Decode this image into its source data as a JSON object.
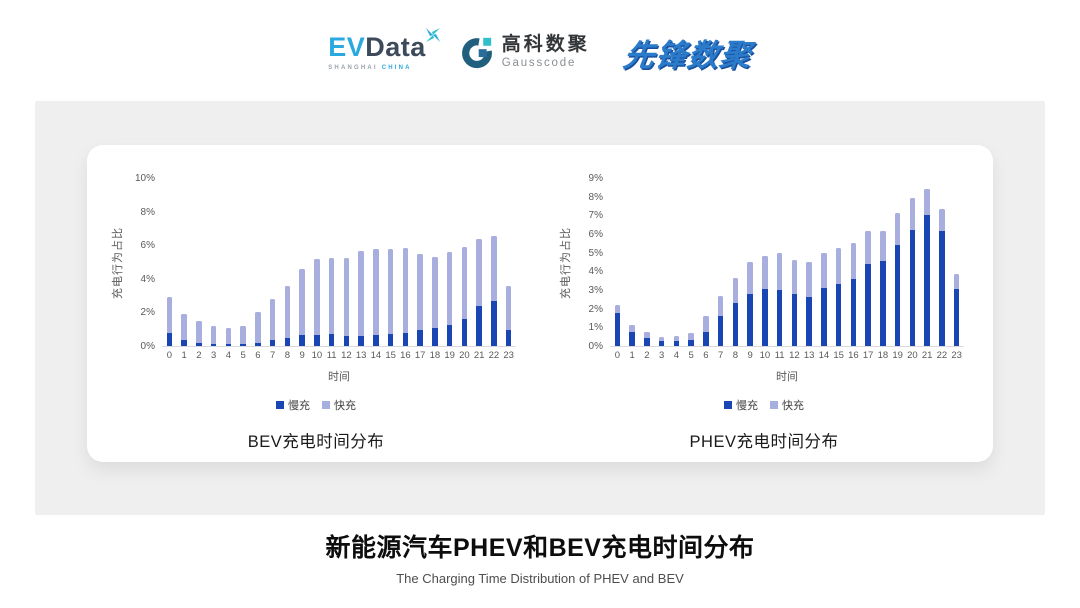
{
  "header": {
    "evdata": {
      "ev": "EV",
      "data": "Data",
      "sub_left": "SHANGHAI",
      "sub_right": "CHINA"
    },
    "gausscode": {
      "cn": "高科数聚",
      "en": "Gausscode"
    },
    "xianfeng": "先锋数聚"
  },
  "colors": {
    "slow_blue": "#1a46b4",
    "fast_periwinkle": "#a8afde",
    "panel_bg": "#efefef",
    "card_bg": "#ffffff",
    "axis_text": "#595959",
    "evdata_blue": "#2aa9e0",
    "evdata_dark": "#3d4a5b",
    "gausscode_dark": "#20607e",
    "gausscode_teal": "#2ec1c9",
    "xianfeng_blue": "#2b7bcb"
  },
  "chart_data": [
    {
      "type": "bar",
      "stacked": true,
      "title": "BEV充电时间分布",
      "xlabel": "时间",
      "ylabel": "充电行为占比",
      "ylim": [
        0,
        10
      ],
      "ytick_step": 2,
      "ytick_suffix": "%",
      "grid": false,
      "legend_position": "bottom",
      "categories": [
        "0",
        "1",
        "2",
        "3",
        "4",
        "5",
        "6",
        "7",
        "8",
        "9",
        "10",
        "11",
        "12",
        "13",
        "14",
        "15",
        "16",
        "17",
        "18",
        "19",
        "20",
        "21",
        "22",
        "23"
      ],
      "series": [
        {
          "name": "慢充",
          "color": "#1a46b4",
          "values": [
            0.75,
            0.35,
            0.2,
            0.1,
            0.1,
            0.1,
            0.15,
            0.35,
            0.45,
            0.65,
            0.65,
            0.7,
            0.6,
            0.6,
            0.65,
            0.7,
            0.8,
            0.95,
            1.1,
            1.25,
            1.6,
            2.4,
            2.7,
            0.95
          ]
        },
        {
          "name": "快充",
          "color": "#a8afde",
          "values": [
            2.15,
            1.55,
            1.3,
            1.1,
            1.0,
            1.1,
            1.85,
            2.45,
            3.15,
            3.95,
            4.55,
            4.55,
            4.65,
            5.05,
            5.15,
            5.1,
            5.05,
            4.55,
            4.2,
            4.35,
            4.3,
            3.95,
            3.85,
            2.6
          ]
        }
      ]
    },
    {
      "type": "bar",
      "stacked": true,
      "title": "PHEV充电时间分布",
      "xlabel": "时间",
      "ylabel": "充电行为占比",
      "ylim": [
        0,
        9
      ],
      "ytick_step": 1,
      "ytick_suffix": "%",
      "grid": false,
      "legend_position": "bottom",
      "categories": [
        "0",
        "1",
        "2",
        "3",
        "4",
        "5",
        "6",
        "7",
        "8",
        "9",
        "10",
        "11",
        "12",
        "13",
        "14",
        "15",
        "16",
        "17",
        "18",
        "19",
        "20",
        "21",
        "22",
        "23"
      ],
      "series": [
        {
          "name": "慢充",
          "color": "#1a46b4",
          "values": [
            1.75,
            0.75,
            0.45,
            0.25,
            0.25,
            0.3,
            0.75,
            1.6,
            2.3,
            2.8,
            3.05,
            3.0,
            2.8,
            2.65,
            3.1,
            3.3,
            3.6,
            4.4,
            4.55,
            5.4,
            6.2,
            7.0,
            6.15,
            3.05
          ]
        },
        {
          "name": "快充",
          "color": "#a8afde",
          "values": [
            0.45,
            0.4,
            0.3,
            0.25,
            0.3,
            0.4,
            0.85,
            1.1,
            1.35,
            1.7,
            1.75,
            2.0,
            1.8,
            1.85,
            1.9,
            1.95,
            1.9,
            1.75,
            1.6,
            1.7,
            1.75,
            1.4,
            1.2,
            0.8
          ]
        }
      ]
    }
  ],
  "footer": {
    "title": "新能源汽车PHEV和BEV充电时间分布",
    "subtitle": "The Charging Time Distribution of PHEV and BEV"
  }
}
